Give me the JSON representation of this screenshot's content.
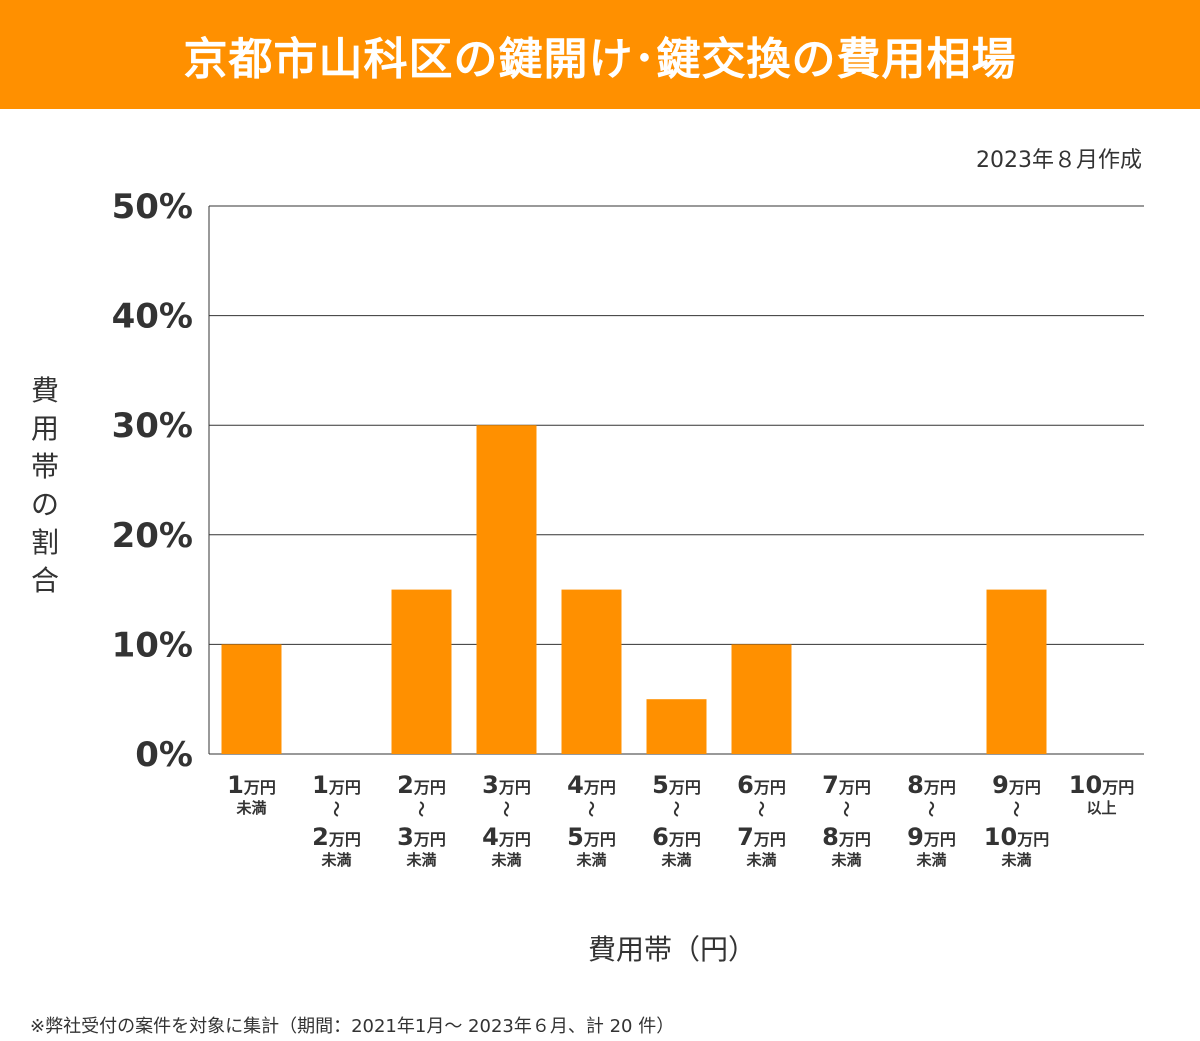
{
  "header": {
    "title": "京都市山科区の鍵開け･鍵交換の費用相場"
  },
  "date_note": "2023年８月作成",
  "footnote": "※弊社受付の案件を対象に集計（期間：2021年1月～ 2023年６月、計 20 件）",
  "colors": {
    "bar": "#ff9000",
    "header": "#ff9000"
  },
  "chart_data": {
    "type": "bar",
    "title": "京都市山科区の鍵開け･鍵交換の費用相場",
    "xlabel": "費用帯（円）",
    "ylabel": "費用帯の割合",
    "ylim": [
      0,
      50
    ],
    "yticks": [
      "0%",
      "10%",
      "20%",
      "30%",
      "40%",
      "50%"
    ],
    "ytick_values": [
      0,
      10,
      20,
      30,
      40,
      50
    ],
    "grid": true,
    "categories": [
      {
        "from": "1",
        "unit": "万円",
        "to": null,
        "suffix": "未満"
      },
      {
        "from": "1",
        "unit": "万円",
        "to": "2",
        "suffix": "未満"
      },
      {
        "from": "2",
        "unit": "万円",
        "to": "3",
        "suffix": "未満"
      },
      {
        "from": "3",
        "unit": "万円",
        "to": "4",
        "suffix": "未満"
      },
      {
        "from": "4",
        "unit": "万円",
        "to": "5",
        "suffix": "未満"
      },
      {
        "from": "5",
        "unit": "万円",
        "to": "6",
        "suffix": "未満"
      },
      {
        "from": "6",
        "unit": "万円",
        "to": "7",
        "suffix": "未満"
      },
      {
        "from": "7",
        "unit": "万円",
        "to": "8",
        "suffix": "未満"
      },
      {
        "from": "8",
        "unit": "万円",
        "to": "9",
        "suffix": "未満"
      },
      {
        "from": "9",
        "unit": "万円",
        "to": "10",
        "suffix": "未満"
      },
      {
        "from": "10",
        "unit": "万円",
        "to": null,
        "suffix": "以上"
      }
    ],
    "range_mark": "～",
    "values": [
      10,
      0,
      15,
      30,
      15,
      5,
      10,
      0,
      0,
      15,
      0
    ]
  }
}
